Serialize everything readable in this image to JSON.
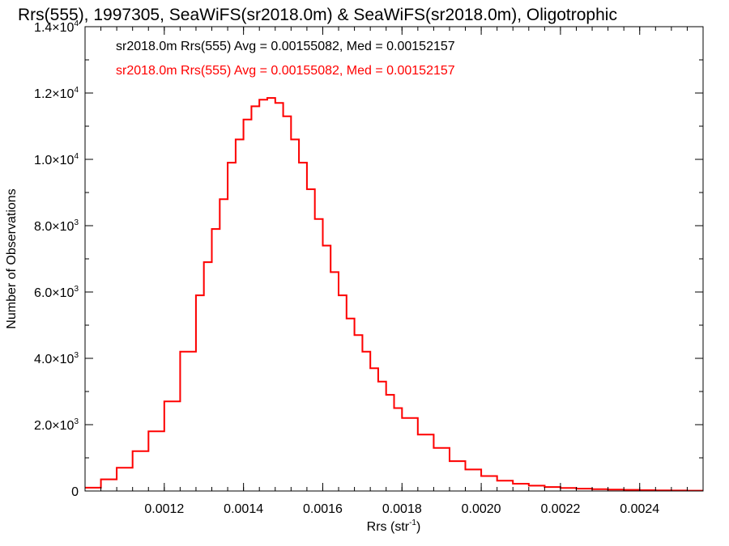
{
  "chart_data": {
    "type": "histogram",
    "title": "Rrs(555), 1997305, SeaWiFS(sr2018.0m) & SeaWiFS(sr2018.0m), Oligotrophic",
    "xlabel": "Rrs (str",
    "xlabel_sup": "-1",
    "xlabel_tail": ")",
    "ylabel": "Number of Observations",
    "xlim": [
      0.001,
      0.00256
    ],
    "ylim": [
      0,
      14000
    ],
    "x_ticks": [
      {
        "value": 0.0012,
        "label": "0.0012"
      },
      {
        "value": 0.0014,
        "label": "0.0014"
      },
      {
        "value": 0.0016,
        "label": "0.0016"
      },
      {
        "value": 0.0018,
        "label": "0.0018"
      },
      {
        "value": 0.002,
        "label": "0.0020"
      },
      {
        "value": 0.0022,
        "label": "0.0022"
      },
      {
        "value": 0.0024,
        "label": "0.0024"
      }
    ],
    "y_ticks": [
      {
        "value": 0,
        "mant": "0",
        "exp": ""
      },
      {
        "value": 2000,
        "mant": "2.0×10",
        "exp": "3"
      },
      {
        "value": 4000,
        "mant": "4.0×10",
        "exp": "3"
      },
      {
        "value": 6000,
        "mant": "6.0×10",
        "exp": "3"
      },
      {
        "value": 8000,
        "mant": "8.0×10",
        "exp": "3"
      },
      {
        "value": 10000,
        "mant": "1.0×10",
        "exp": "4"
      },
      {
        "value": 12000,
        "mant": "1.2×10",
        "exp": "4"
      },
      {
        "value": 14000,
        "mant": "1.4×10",
        "exp": "4"
      }
    ],
    "legend_position": "top-left",
    "annotations": [
      {
        "text": "sr2018.0m Rrs(555) Avg = 0.00155082, Med = 0.00152157",
        "color": "#000000"
      },
      {
        "text": "sr2018.0m Rrs(555) Avg = 0.00155082, Med = 0.00152157",
        "color": "#ff0000"
      }
    ],
    "series": [
      {
        "color": "#000000",
        "x": [
          0.001,
          0.00104,
          0.00108,
          0.00112,
          0.00116,
          0.0012,
          0.00124,
          0.00128,
          0.0013,
          0.00132,
          0.00134,
          0.00136,
          0.00138,
          0.0014,
          0.00142,
          0.00144,
          0.00146,
          0.00148,
          0.0015,
          0.00152,
          0.00154,
          0.00156,
          0.00158,
          0.0016,
          0.00162,
          0.00164,
          0.00166,
          0.00168,
          0.0017,
          0.00172,
          0.00174,
          0.00176,
          0.00178,
          0.0018,
          0.00184,
          0.00188,
          0.00192,
          0.00196,
          0.002,
          0.00204,
          0.00208,
          0.00212,
          0.00216,
          0.0022,
          0.00224,
          0.00228,
          0.00232,
          0.00236,
          0.0024,
          0.00244,
          0.00248,
          0.00252,
          0.00256
        ],
        "y": [
          100,
          350,
          700,
          1200,
          1800,
          2700,
          4200,
          5900,
          6900,
          7900,
          8800,
          9900,
          10600,
          11200,
          11600,
          11800,
          11850,
          11700,
          11300,
          10600,
          9900,
          9100,
          8200,
          7400,
          6600,
          5900,
          5200,
          4700,
          4200,
          3700,
          3300,
          2900,
          2500,
          2200,
          1700,
          1300,
          900,
          650,
          450,
          310,
          220,
          160,
          120,
          90,
          70,
          55,
          45,
          35,
          25,
          20,
          15,
          10,
          5
        ]
      },
      {
        "color": "#ff0000",
        "x": [
          0.001,
          0.00104,
          0.00108,
          0.00112,
          0.00116,
          0.0012,
          0.00124,
          0.00128,
          0.0013,
          0.00132,
          0.00134,
          0.00136,
          0.00138,
          0.0014,
          0.00142,
          0.00144,
          0.00146,
          0.00148,
          0.0015,
          0.00152,
          0.00154,
          0.00156,
          0.00158,
          0.0016,
          0.00162,
          0.00164,
          0.00166,
          0.00168,
          0.0017,
          0.00172,
          0.00174,
          0.00176,
          0.00178,
          0.0018,
          0.00184,
          0.00188,
          0.00192,
          0.00196,
          0.002,
          0.00204,
          0.00208,
          0.00212,
          0.00216,
          0.0022,
          0.00224,
          0.00228,
          0.00232,
          0.00236,
          0.0024,
          0.00244,
          0.00248,
          0.00252,
          0.00256
        ],
        "y": [
          100,
          350,
          700,
          1200,
          1800,
          2700,
          4200,
          5900,
          6900,
          7900,
          8800,
          9900,
          10600,
          11200,
          11600,
          11800,
          11850,
          11700,
          11300,
          10600,
          9900,
          9100,
          8200,
          7400,
          6600,
          5900,
          5200,
          4700,
          4200,
          3700,
          3300,
          2900,
          2500,
          2200,
          1700,
          1300,
          900,
          650,
          450,
          310,
          220,
          160,
          120,
          90,
          70,
          55,
          45,
          35,
          25,
          20,
          15,
          10,
          5
        ]
      }
    ],
    "grid": false
  }
}
